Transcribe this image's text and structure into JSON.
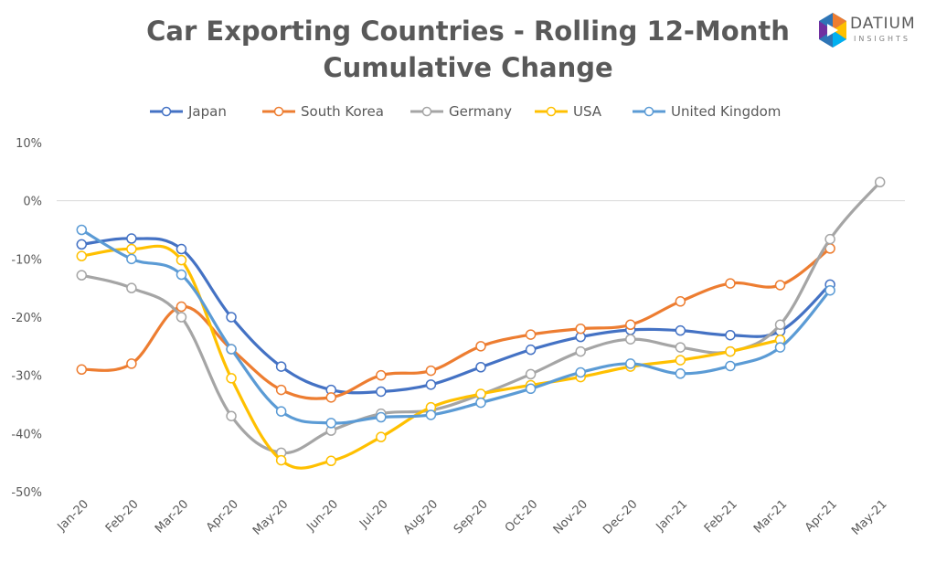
{
  "brand": {
    "name": "DATIUM",
    "sub": "INSIGHTS"
  },
  "chart_data": {
    "type": "line",
    "title": "Car Exporting Countries - Rolling 12-Month Cumulative Change",
    "title_line1": "Car Exporting Countries - Rolling 12-Month",
    "title_line2": "Cumulative Change",
    "categories": [
      "Jan-20",
      "Feb-20",
      "Mar-20",
      "Apr-20",
      "May-20",
      "Jun-20",
      "Jul-20",
      "Aug-20",
      "Sep-20",
      "Oct-20",
      "Nov-20",
      "Dec-20",
      "Jan-21",
      "Feb-21",
      "Mar-21",
      "Apr-21",
      "May-21"
    ],
    "ylim": [
      -50,
      10
    ],
    "yticks": [
      10,
      0,
      -10,
      -20,
      -30,
      -40,
      -50
    ],
    "ytick_labels": [
      "10%",
      "0%",
      "-10%",
      "-20%",
      "-30%",
      "-40%",
      "-50%"
    ],
    "legend_position": "top",
    "grid": "zero-line only",
    "series": [
      {
        "name": "Japan",
        "color": "#4472C4",
        "values": [
          -7.5,
          -6.5,
          -8.3,
          -20,
          -28.5,
          -32.5,
          -32.8,
          -31.6,
          -28.6,
          -25.6,
          -23.4,
          -22.2,
          -22.3,
          -23.1,
          -22.4,
          -14.4,
          null
        ]
      },
      {
        "name": "South Korea",
        "color": "#ED7D31",
        "values": [
          -29,
          -28,
          -18.2,
          -25.5,
          -32.5,
          -33.8,
          -30,
          -29.2,
          -25,
          -23,
          -22,
          -21.3,
          -17.3,
          -14.2,
          -14.5,
          -8.2,
          null
        ]
      },
      {
        "name": "Germany",
        "color": "#A5A5A5",
        "values": [
          -12.8,
          -15,
          -20,
          -37,
          -43.3,
          -39.5,
          -36.6,
          -36,
          -33.3,
          -29.8,
          -25.9,
          -23.8,
          -25.2,
          -25.9,
          -21.3,
          -6.6,
          3.2
        ]
      },
      {
        "name": "USA",
        "color": "#FFC000",
        "values": [
          -9.5,
          -8.3,
          -10.2,
          -30.5,
          -44.6,
          -44.7,
          -40.6,
          -35.5,
          -33.2,
          -31.7,
          -30.3,
          -28.5,
          -27.4,
          -25.9,
          -23.9,
          null,
          null
        ]
      },
      {
        "name": "United Kingdom",
        "color": "#5B9BD5",
        "values": [
          -5,
          -10,
          -12.7,
          -25.5,
          -36.2,
          -38.2,
          -37.2,
          -36.8,
          -34.7,
          -32.3,
          -29.5,
          -28,
          -29.7,
          -28.4,
          -25.2,
          -15.4,
          null
        ]
      }
    ]
  }
}
